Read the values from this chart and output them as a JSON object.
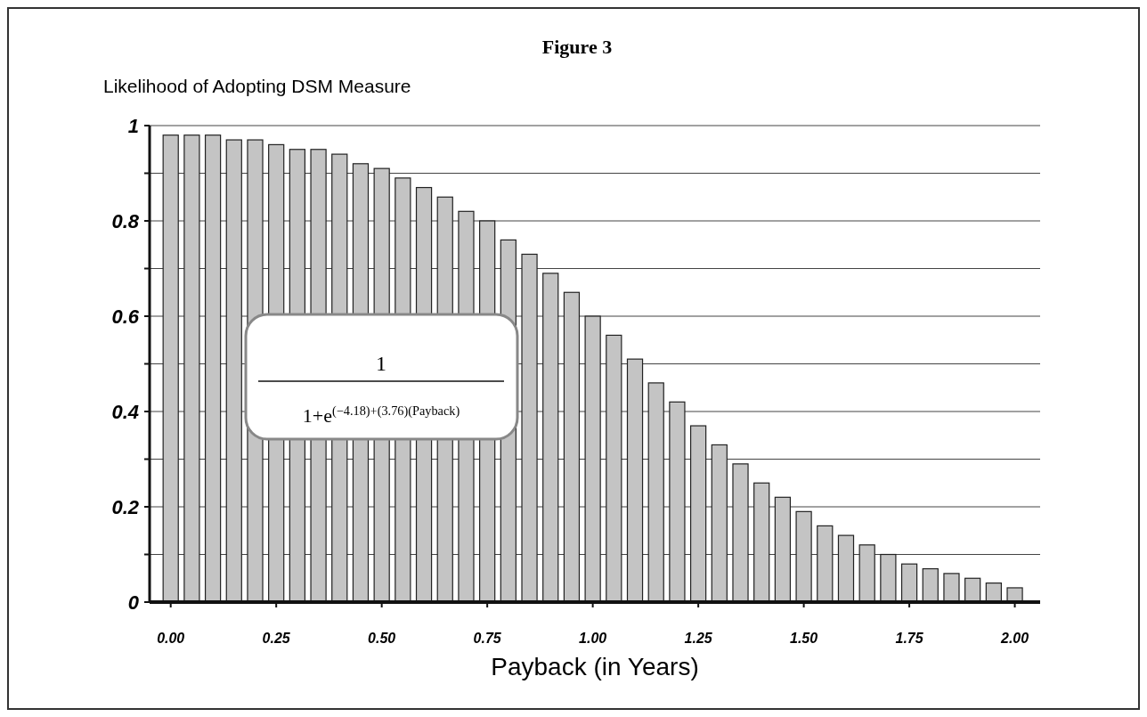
{
  "chart_data": {
    "type": "bar",
    "title": "Figure 3",
    "ylabel": "Likelihood of Adopting DSM Measure",
    "xlabel": "Payback (in Years)",
    "x": [
      0,
      0.05,
      0.1,
      0.15,
      0.2,
      0.25,
      0.3,
      0.35,
      0.4,
      0.45,
      0.5,
      0.55,
      0.6,
      0.65,
      0.7,
      0.75,
      0.8,
      0.85,
      0.9,
      0.95,
      1,
      1.05,
      1.1,
      1.15,
      1.2,
      1.25,
      1.3,
      1.35,
      1.4,
      1.45,
      1.5,
      1.55,
      1.6,
      1.65,
      1.7,
      1.75,
      1.8,
      1.85,
      1.9,
      1.95,
      2
    ],
    "values": [
      0.98,
      0.98,
      0.98,
      0.97,
      0.97,
      0.96,
      0.95,
      0.95,
      0.94,
      0.92,
      0.91,
      0.89,
      0.87,
      0.85,
      0.82,
      0.8,
      0.76,
      0.73,
      0.69,
      0.65,
      0.6,
      0.56,
      0.51,
      0.46,
      0.42,
      0.37,
      0.33,
      0.29,
      0.25,
      0.22,
      0.19,
      0.16,
      0.14,
      0.12,
      0.1,
      0.08,
      0.07,
      0.06,
      0.05,
      0.04,
      0.03
    ],
    "color": "#c4c4c4",
    "xlim": [
      -0.05,
      2.06
    ],
    "xticks": [
      {
        "value": 0,
        "label": "0.00"
      },
      {
        "value": 0.25,
        "label": "0.25"
      },
      {
        "value": 0.5,
        "label": "0.50"
      },
      {
        "value": 0.75,
        "label": "0.75"
      },
      {
        "value": 1,
        "label": "1.00"
      },
      {
        "value": 1.25,
        "label": "1.25"
      },
      {
        "value": 1.5,
        "label": "1.50"
      },
      {
        "value": 1.75,
        "label": "1.75"
      },
      {
        "value": 2,
        "label": "2.00"
      }
    ],
    "ylim": [
      0,
      1
    ],
    "yticks": [
      0,
      {
        "value": 0.1,
        "label": null
      },
      0.2,
      {
        "value": 0.3,
        "label": null
      },
      0.4,
      {
        "value": 0.5,
        "label": null
      },
      0.6,
      {
        "value": 0.7,
        "label": null
      },
      0.8,
      {
        "value": 0.9,
        "label": null
      },
      1
    ],
    "grid": "y",
    "annotations": [
      "1",
      "1+e$^{(−4.18)+(3.76)(Payback)}$"
    ]
  }
}
